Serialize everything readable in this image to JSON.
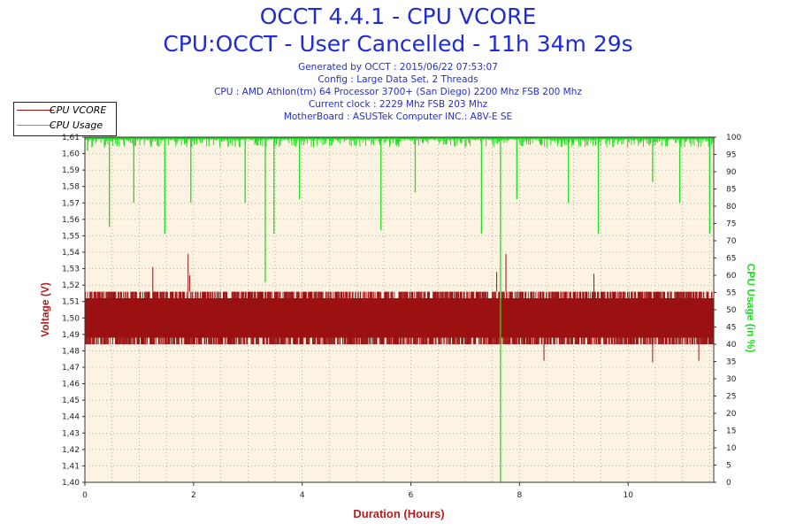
{
  "header": {
    "title": "OCCT 4.4.1 - CPU VCORE",
    "subtitle": "CPU:OCCT - User Cancelled - 11h 34m 29s",
    "info_lines": [
      "Generated by OCCT : 2015/06/22 07:53:07",
      "Config : Large Data Set, 2 Threads",
      "CPU : AMD Athlon(tm) 64 Processor 3700+ (San Diego) 2200 Mhz FSB 200 Mhz",
      "Current clock : 2229 Mhz FSB 203 Mhz",
      "MotherBoard : ASUSTek Computer INC.: A8V-E SE"
    ]
  },
  "legend": [
    {
      "label": "CPU VCORE",
      "color": "#9b1111"
    },
    {
      "label": "CPU Usage",
      "color": "#22dd22"
    }
  ],
  "chart_data": {
    "type": "line",
    "xlabel": "Duration (Hours)",
    "ylabel": "Voltage (V)",
    "y2label": "CPU Usage (in %)",
    "xlim": [
      0,
      11.575
    ],
    "ylim": [
      1.4,
      1.61
    ],
    "y2lim": [
      0,
      100
    ],
    "x_ticks": [
      "0",
      "2",
      "4",
      "6",
      "8",
      "10"
    ],
    "y_ticks": [
      "1,40",
      "1,41",
      "1,42",
      "1,43",
      "1,44",
      "1,45",
      "1,46",
      "1,47",
      "1,48",
      "1,49",
      "1,50",
      "1,51",
      "1,52",
      "1,53",
      "1,54",
      "1,55",
      "1,56",
      "1,57",
      "1,58",
      "1,59",
      "1,60",
      "1,61"
    ],
    "y2_ticks": [
      "0",
      "5",
      "10",
      "15",
      "20",
      "25",
      "30",
      "35",
      "40",
      "45",
      "50",
      "55",
      "60",
      "65",
      "70",
      "75",
      "80",
      "85",
      "90",
      "95",
      "100"
    ],
    "grid": true,
    "legend_position": "top-left",
    "series": [
      {
        "name": "CPU VCORE",
        "color": "#9b1111",
        "axis": "left",
        "baseline_range": [
          1.484,
          1.516
        ],
        "max": 1.539,
        "min": 1.473,
        "spikes": [
          {
            "x": 1.25,
            "y": 1.531
          },
          {
            "x": 1.9,
            "y": 1.539
          },
          {
            "x": 1.93,
            "y": 1.526
          },
          {
            "x": 7.75,
            "y": 1.539
          },
          {
            "x": 7.58,
            "y": 1.528
          },
          {
            "x": 9.37,
            "y": 1.527
          },
          {
            "x": 10.45,
            "y": 1.473
          },
          {
            "x": 8.45,
            "y": 1.474
          },
          {
            "x": 11.3,
            "y": 1.474
          }
        ]
      },
      {
        "name": "CPU Usage",
        "color": "#22dd22",
        "axis": "right",
        "baseline": 100,
        "dips": [
          {
            "x": 0.05,
            "y": 96
          },
          {
            "x": 0.45,
            "y": 74
          },
          {
            "x": 0.9,
            "y": 81
          },
          {
            "x": 1.47,
            "y": 72
          },
          {
            "x": 1.95,
            "y": 81
          },
          {
            "x": 2.95,
            "y": 81
          },
          {
            "x": 3.32,
            "y": 58
          },
          {
            "x": 3.48,
            "y": 72
          },
          {
            "x": 3.95,
            "y": 82
          },
          {
            "x": 5.45,
            "y": 73
          },
          {
            "x": 6.08,
            "y": 84
          },
          {
            "x": 7.3,
            "y": 72
          },
          {
            "x": 7.65,
            "y": 0
          },
          {
            "x": 7.95,
            "y": 82
          },
          {
            "x": 8.9,
            "y": 81
          },
          {
            "x": 9.45,
            "y": 72
          },
          {
            "x": 10.45,
            "y": 87
          },
          {
            "x": 10.95,
            "y": 81
          },
          {
            "x": 11.5,
            "y": 72
          }
        ]
      }
    ]
  }
}
